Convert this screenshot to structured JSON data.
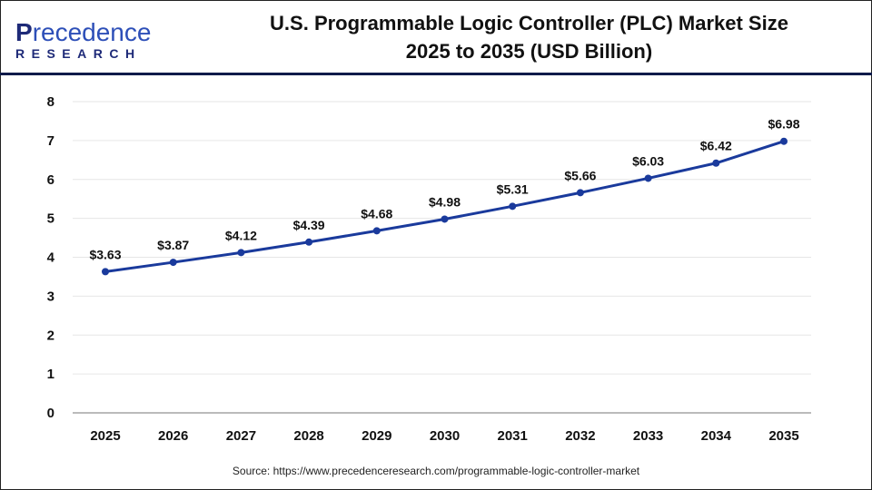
{
  "logo": {
    "brand_first": "P",
    "brand_rest": "recedence",
    "brand_sub": "RESEARCH"
  },
  "title_line1": "U.S. Programmable Logic Controller (PLC) Market Size",
  "title_line2": "2025 to 2035 (USD Billion)",
  "source": "Source: https://www.precedenceresearch.com/programmable-logic-controller-market",
  "colors": {
    "line": "#1a3a9c",
    "header_rule": "#0d1b4a",
    "grid": "#e6e6e6"
  },
  "chart_data": {
    "type": "line",
    "categories": [
      "2025",
      "2026",
      "2027",
      "2028",
      "2029",
      "2030",
      "2031",
      "2032",
      "2033",
      "2034",
      "2035"
    ],
    "values": [
      3.63,
      3.87,
      4.12,
      4.39,
      4.68,
      4.98,
      5.31,
      5.66,
      6.03,
      6.42,
      6.98
    ],
    "data_labels": [
      "$3.63",
      "$3.87",
      "$4.12",
      "$4.39",
      "$4.68",
      "$4.98",
      "$5.31",
      "$5.66",
      "$6.03",
      "$6.42",
      "$6.98"
    ],
    "yticks": [
      "0",
      "1",
      "2",
      "3",
      "4",
      "5",
      "6",
      "7",
      "8"
    ],
    "ylim": [
      0,
      8
    ],
    "grid": true,
    "legend": "none"
  }
}
